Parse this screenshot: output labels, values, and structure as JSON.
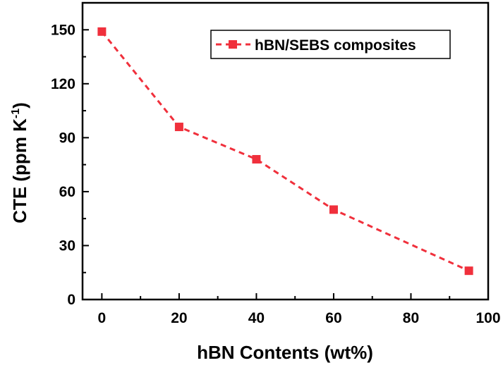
{
  "chart_data": {
    "type": "line",
    "x": [
      0,
      20,
      40,
      60,
      95
    ],
    "series": [
      {
        "name": "hBN/SEBS composites",
        "values": [
          149,
          96,
          78,
          50,
          16
        ],
        "color": "#f0303c",
        "line_style": "dashed",
        "marker": "square"
      }
    ],
    "xlabel": "hBN Contents (wt%)",
    "ylabel": {
      "main": "CTE (ppm K",
      "sup": "-1",
      "close": ")"
    },
    "xlim": [
      -5,
      100
    ],
    "ylim": [
      0,
      165
    ],
    "xticks": [
      0,
      20,
      40,
      60,
      80,
      100
    ],
    "yticks": [
      0,
      30,
      60,
      90,
      120,
      150
    ],
    "legend_position": "top-right",
    "grid": false
  }
}
